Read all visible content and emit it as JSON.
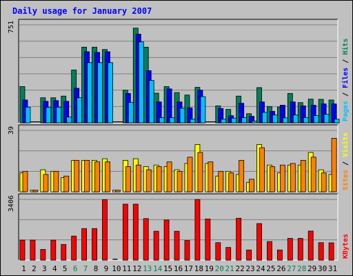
{
  "chart_data": {
    "type": "bar",
    "title": "Daily usage for January 2007",
    "categories": [
      "1",
      "2",
      "3",
      "4",
      "5",
      "6",
      "7",
      "8",
      "9",
      "10",
      "11",
      "12",
      "13",
      "14",
      "15",
      "16",
      "17",
      "18",
      "19",
      "20",
      "21",
      "22",
      "23",
      "24",
      "25",
      "26",
      "27",
      "28",
      "29",
      "30",
      "31"
    ],
    "weekend_days": [
      "6",
      "7",
      "13",
      "14",
      "20",
      "21",
      "27",
      "28"
    ],
    "panels": [
      {
        "id": "top",
        "ymax_label": "751",
        "ymax": 751,
        "series": [
          {
            "name": "Hits",
            "color": "#00805c",
            "values": [
              278,
              0,
              192,
              192,
              205,
              405,
              580,
              580,
              562,
              0,
              250,
              726,
              580,
              227,
              278,
              232,
              213,
              272,
              0,
              130,
              103,
              205,
              70,
              270,
              125,
              121,
              225,
              155,
              182,
              180,
              175
            ]
          },
          {
            "name": "Files",
            "color": "#0000ff",
            "values": [
              175,
              0,
              165,
              170,
              165,
              265,
              545,
              540,
              545,
              0,
              225,
              680,
              400,
              160,
              260,
              160,
              115,
              250,
              0,
              110,
              55,
              150,
              50,
              160,
              88,
              135,
              160,
              130,
              135,
              145,
              145
            ]
          },
          {
            "name": "Pages",
            "color": "#00c0ff",
            "values": [
              120,
              0,
              118,
              120,
              45,
              192,
              461,
              461,
              461,
              0,
              157,
              620,
              325,
              40,
              40,
              112,
              28,
              201,
              0,
              28,
              36,
              40,
              14,
              80,
              60,
              38,
              60,
              41,
              55,
              65,
              28
            ]
          }
        ]
      },
      {
        "id": "middle",
        "ymax_label": "39",
        "ymax": 39,
        "series": [
          {
            "name": "Visits",
            "color": "#ffff00",
            "values": [
              12,
              1,
              14,
              13,
              9,
              20,
              20,
              20,
              21,
              1,
              20,
              21,
              16,
              17,
              16,
              14,
              18,
              30,
              18,
              10,
              13,
              11,
              6,
              30,
              17,
              12,
              17,
              17,
              25,
              14,
              11
            ]
          },
          {
            "name": "Sites",
            "color": "#ff8000",
            "values": [
              13,
              1,
              11,
              13,
              10,
              20,
              20,
              19,
              19,
              1,
              16,
              17,
              14,
              16,
              19,
              13,
              22,
              25,
              19,
              13,
              12,
              20,
              8,
              28,
              16,
              17,
              18,
              20,
              22,
              12,
              34
            ]
          }
        ]
      },
      {
        "id": "bottom",
        "ymax_label": "3406",
        "ymax": 3406,
        "series": [
          {
            "name": "KBytes",
            "color": "#ff0000",
            "values": [
              1120,
              1120,
              600,
              1120,
              880,
              1350,
              1770,
              1770,
              3390,
              0,
              3140,
              3140,
              2330,
              1620,
              2250,
              1620,
              1100,
              3400,
              2310,
              980,
              710,
              2350,
              570,
              2050,
              1040,
              570,
              1220,
              1220,
              1630,
              980,
              970
            ]
          }
        ]
      }
    ],
    "ylabels": {
      "top": [
        "Pages",
        "/",
        "Files",
        "/",
        "Hits"
      ],
      "middle": [
        "Sites",
        "/",
        "Visits"
      ],
      "bottom": [
        "KBytes"
      ]
    }
  }
}
